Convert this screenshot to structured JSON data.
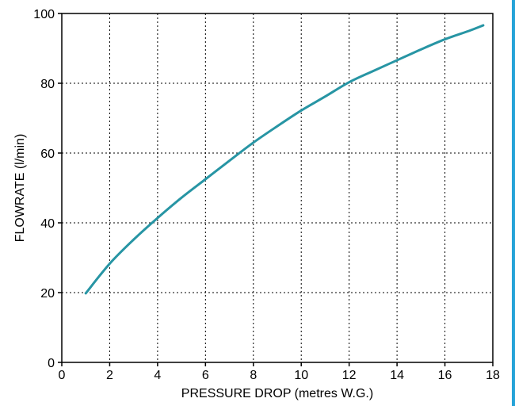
{
  "colors": {
    "curve": "#2795a4",
    "right_edge": "#26a3d8",
    "grid": "#000000",
    "background": "#ffffff"
  },
  "chart_data": {
    "type": "line",
    "xlabel": "PRESSURE DROP (metres W.G.)",
    "ylabel": "FLOWRATE (l/min)",
    "xlim": [
      0,
      18
    ],
    "ylim": [
      0,
      100
    ],
    "x_ticks": [
      0,
      2,
      4,
      6,
      8,
      10,
      12,
      14,
      16,
      18
    ],
    "y_ticks": [
      0,
      20,
      40,
      60,
      80,
      100
    ],
    "x_tick_labels": [
      "0",
      "2",
      "4",
      "6",
      "8",
      "10",
      "12",
      "14",
      "16",
      "18"
    ],
    "y_tick_labels": [
      "0",
      "20",
      "40",
      "60",
      "80",
      "100"
    ],
    "grid": true,
    "legend": "none",
    "series": [
      {
        "x": [
          1.0,
          2.0,
          3.0,
          4.0,
          5.0,
          6.0,
          7.0,
          8.0,
          9.0,
          10.0,
          11.0,
          12.0,
          13.0,
          14.0,
          15.0,
          16.0,
          17.0,
          17.6
        ],
        "y": [
          19.8,
          28.3,
          35.2,
          41.4,
          47.2,
          52.5,
          57.8,
          63.0,
          67.7,
          72.2,
          76.2,
          80.3,
          83.5,
          86.6,
          89.7,
          92.6,
          95.0,
          96.6
        ]
      }
    ]
  }
}
